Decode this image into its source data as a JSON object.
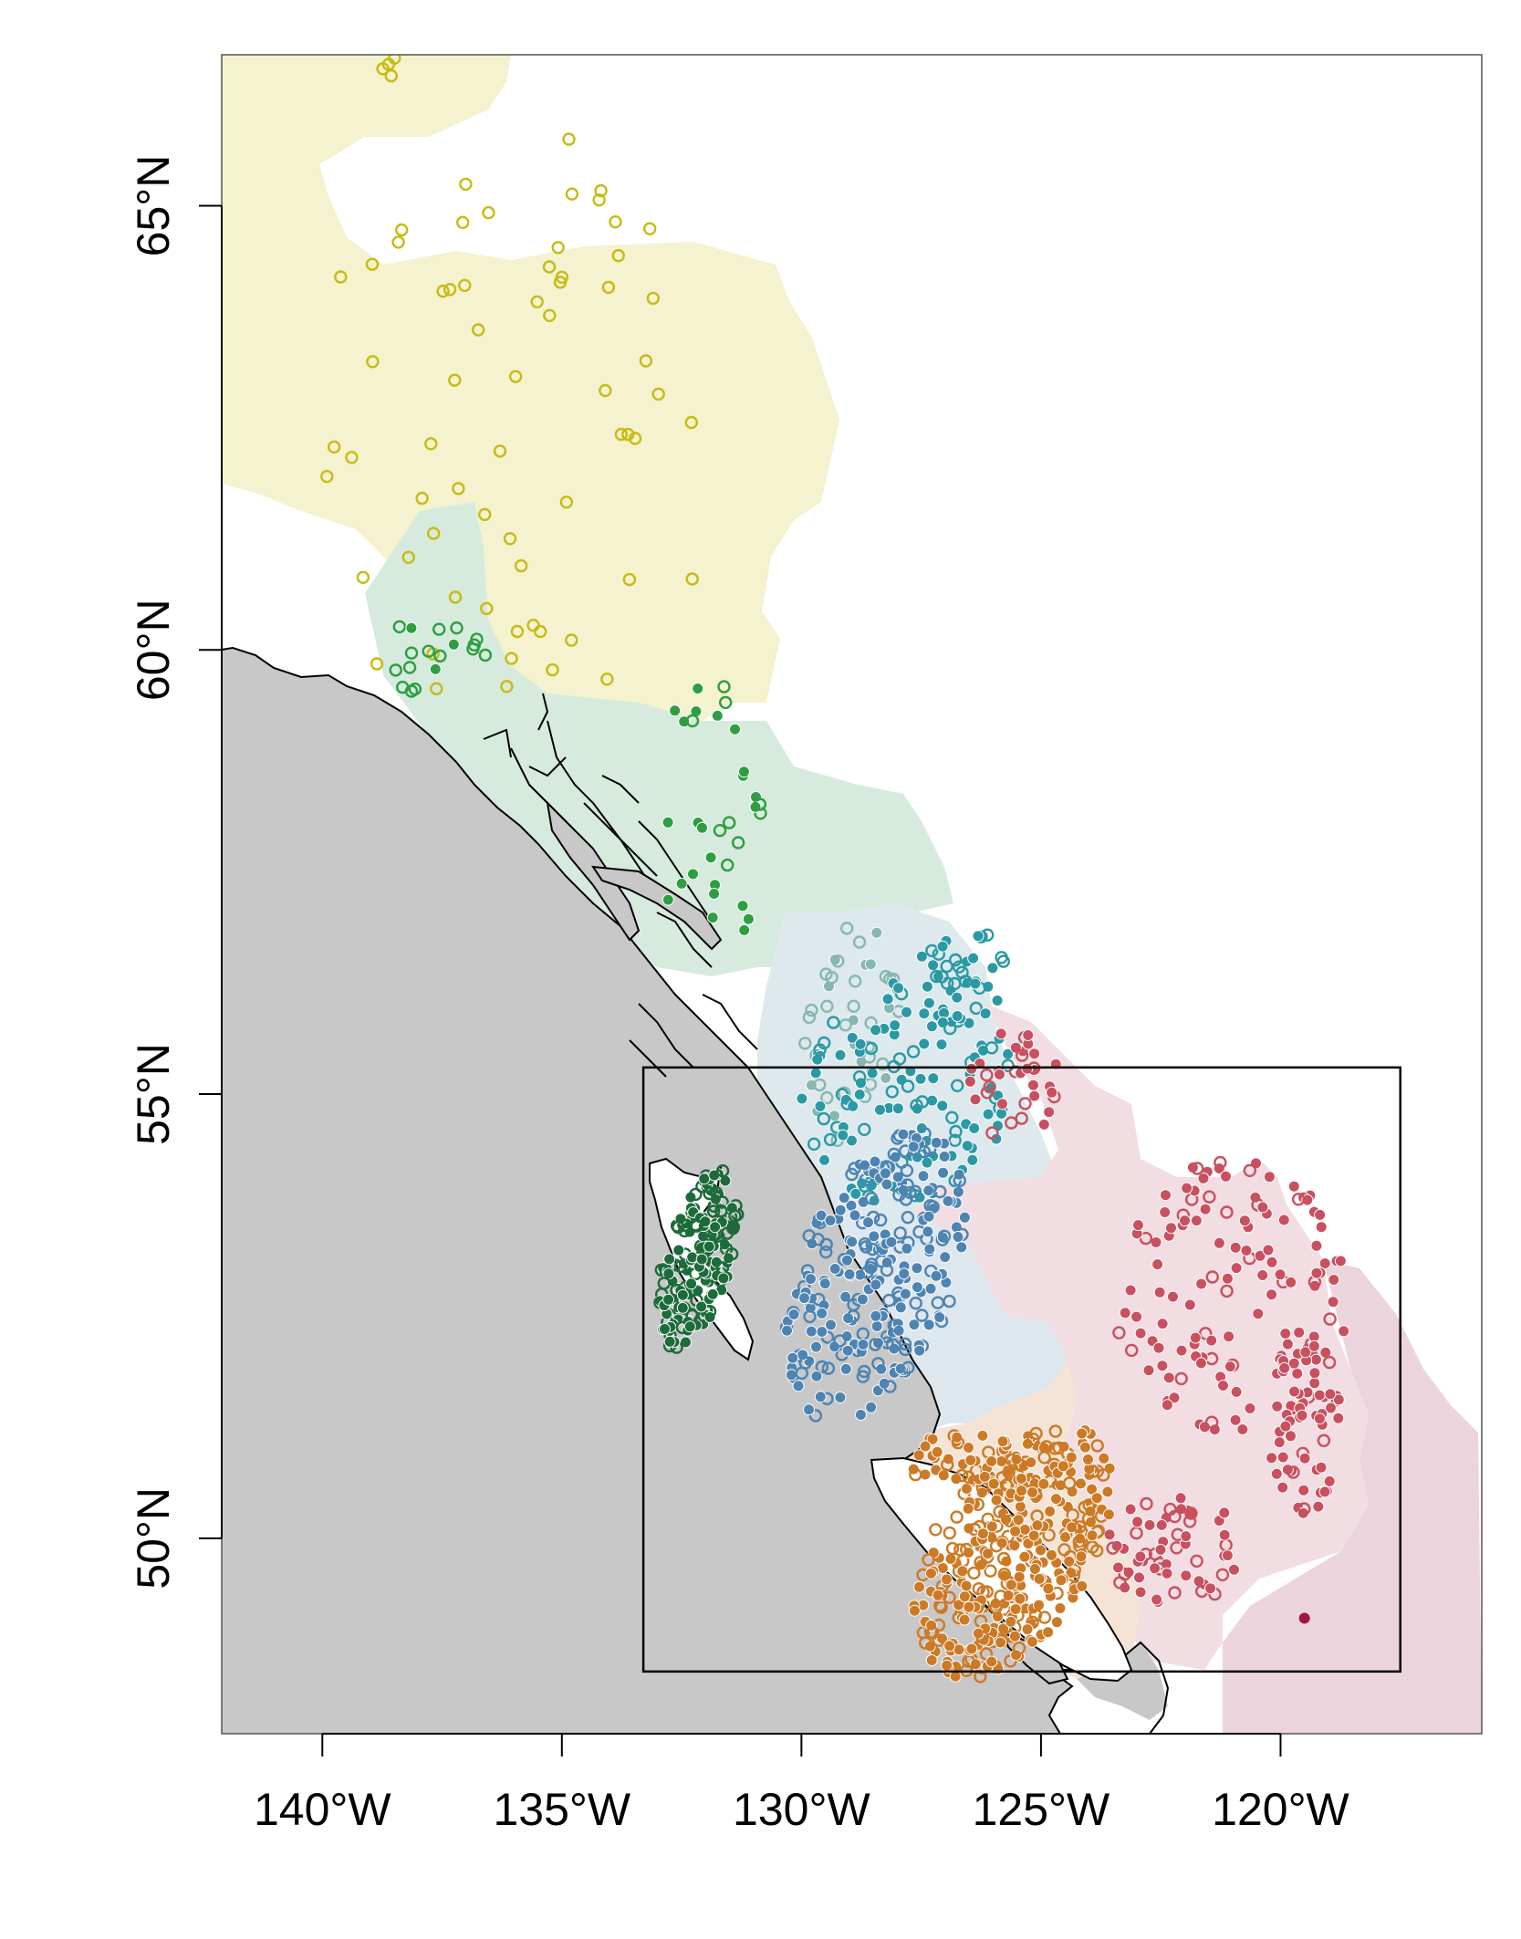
{
  "map": {
    "type": "sampling-site map",
    "longitude_range": [
      -142.1,
      -115.8
    ],
    "latitude_range": [
      47.8,
      66.7
    ],
    "x_ticks": [
      {
        "value": -140,
        "label": "140°W"
      },
      {
        "value": -135,
        "label": "135°W"
      },
      {
        "value": -130,
        "label": "130°W"
      },
      {
        "value": -125,
        "label": "125°W"
      },
      {
        "value": -120,
        "label": "120°W"
      }
    ],
    "y_ticks": [
      {
        "value": 65,
        "label": "65°N"
      },
      {
        "value": 60,
        "label": "60°N"
      },
      {
        "value": 55,
        "label": "55°N"
      },
      {
        "value": 50,
        "label": "50°N"
      }
    ],
    "inset_box": {
      "lon_min": -133.3,
      "lon_max": -117.5,
      "lat_min": 48.5,
      "lat_max": 55.3
    },
    "colors": {
      "ocean": "#c8c8c8",
      "coastline": "#000000",
      "yukon_region": "#f4f2cf",
      "north_coast_region": "#d6ebdd",
      "skeena_region": "#dde9ed",
      "central_coast_region": "#dee7ee",
      "fraser_region": "#f1dde2",
      "columbia_region": "#ecd4dc",
      "vancouver_island_region": "#f5e4d5",
      "yukon_sites": "#c8bb12",
      "alsek_taku_sites": "#2e9e41",
      "haida_gwaii_sites": "#1d6b3a",
      "nass_skeena_light_sites": "#85b8b0",
      "skeena_sites": "#2b99a5",
      "central_coast_sites": "#4d84b2",
      "fraser_sites": "#c9505f",
      "columbia_sites": "#a0153e",
      "vancouver_island_sites": "#cc7a25"
    }
  }
}
